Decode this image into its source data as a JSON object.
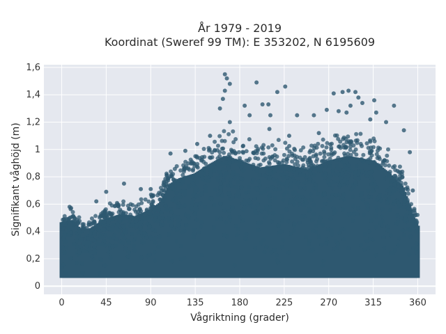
{
  "chart_data": {
    "type": "scatter",
    "title_line1": "År 1979 - 2019",
    "title_line2": "Koordinat (Sweref 99 TM): E 353202, N 6195609",
    "xlabel": "Vågriktning (grader)",
    "ylabel": "Signifikant våghöjd (m)",
    "xlim": [
      -18,
      378
    ],
    "ylim": [
      -0.06,
      1.62
    ],
    "x_ticks": [
      0,
      45,
      90,
      135,
      180,
      225,
      270,
      315,
      360
    ],
    "y_ticks": [
      0,
      0.2,
      0.4,
      0.6,
      0.8,
      1,
      1.2,
      1.4,
      1.6
    ],
    "y_tick_labels": [
      "0",
      "0,2",
      "0,4",
      "0,6",
      "0,8",
      "1",
      "1,2",
      "1,4",
      "1,6"
    ],
    "grid": true,
    "marker_color": "#2e5870",
    "envelope": [
      {
        "x": 0,
        "ymax": 0.55
      },
      {
        "x": 10,
        "ymax": 0.57
      },
      {
        "x": 20,
        "ymax": 0.48
      },
      {
        "x": 30,
        "ymax": 0.5
      },
      {
        "x": 45,
        "ymax": 0.58
      },
      {
        "x": 60,
        "ymax": 0.62
      },
      {
        "x": 75,
        "ymax": 0.6
      },
      {
        "x": 90,
        "ymax": 0.66
      },
      {
        "x": 100,
        "ymax": 0.72
      },
      {
        "x": 110,
        "ymax": 0.88
      },
      {
        "x": 120,
        "ymax": 0.93
      },
      {
        "x": 135,
        "ymax": 0.97
      },
      {
        "x": 150,
        "ymax": 1.05
      },
      {
        "x": 165,
        "ymax": 1.12
      },
      {
        "x": 180,
        "ymax": 1.08
      },
      {
        "x": 200,
        "ymax": 1.02
      },
      {
        "x": 225,
        "ymax": 1.05
      },
      {
        "x": 250,
        "ymax": 1.0
      },
      {
        "x": 270,
        "ymax": 1.08
      },
      {
        "x": 290,
        "ymax": 1.12
      },
      {
        "x": 315,
        "ymax": 1.08
      },
      {
        "x": 330,
        "ymax": 0.98
      },
      {
        "x": 345,
        "ymax": 0.85
      },
      {
        "x": 355,
        "ymax": 0.6
      },
      {
        "x": 360,
        "ymax": 0.52
      }
    ],
    "outliers": [
      {
        "x": 165,
        "y": 1.55
      },
      {
        "x": 167,
        "y": 1.52
      },
      {
        "x": 170,
        "y": 1.48
      },
      {
        "x": 165,
        "y": 1.43
      },
      {
        "x": 163,
        "y": 1.37
      },
      {
        "x": 197,
        "y": 1.49
      },
      {
        "x": 203,
        "y": 1.33
      },
      {
        "x": 209,
        "y": 1.33
      },
      {
        "x": 218,
        "y": 1.42
      },
      {
        "x": 226,
        "y": 1.46
      },
      {
        "x": 185,
        "y": 1.32
      },
      {
        "x": 160,
        "y": 1.3
      },
      {
        "x": 190,
        "y": 1.25
      },
      {
        "x": 211,
        "y": 1.25
      },
      {
        "x": 238,
        "y": 1.25
      },
      {
        "x": 255,
        "y": 1.25
      },
      {
        "x": 268,
        "y": 1.29
      },
      {
        "x": 275,
        "y": 1.41
      },
      {
        "x": 284,
        "y": 1.42
      },
      {
        "x": 290,
        "y": 1.43
      },
      {
        "x": 297,
        "y": 1.42
      },
      {
        "x": 300,
        "y": 1.38
      },
      {
        "x": 304,
        "y": 1.34
      },
      {
        "x": 292,
        "y": 1.32
      },
      {
        "x": 280,
        "y": 1.28
      },
      {
        "x": 288,
        "y": 1.27
      },
      {
        "x": 316,
        "y": 1.36
      },
      {
        "x": 318,
        "y": 1.27
      },
      {
        "x": 336,
        "y": 1.32
      },
      {
        "x": 312,
        "y": 1.22
      },
      {
        "x": 328,
        "y": 1.2
      },
      {
        "x": 346,
        "y": 1.14
      },
      {
        "x": 352,
        "y": 0.98
      },
      {
        "x": 355,
        "y": 0.7
      },
      {
        "x": 8,
        "y": 0.58
      },
      {
        "x": 35,
        "y": 0.62
      },
      {
        "x": 45,
        "y": 0.69
      },
      {
        "x": 63,
        "y": 0.75
      },
      {
        "x": 80,
        "y": 0.71
      },
      {
        "x": 90,
        "y": 0.71
      },
      {
        "x": 110,
        "y": 0.97
      },
      {
        "x": 125,
        "y": 0.99
      },
      {
        "x": 137,
        "y": 1.04
      },
      {
        "x": 150,
        "y": 1.1
      },
      {
        "x": 170,
        "y": 1.2
      },
      {
        "x": 210,
        "y": 1.15
      },
      {
        "x": 230,
        "y": 1.1
      },
      {
        "x": 260,
        "y": 1.12
      }
    ]
  }
}
